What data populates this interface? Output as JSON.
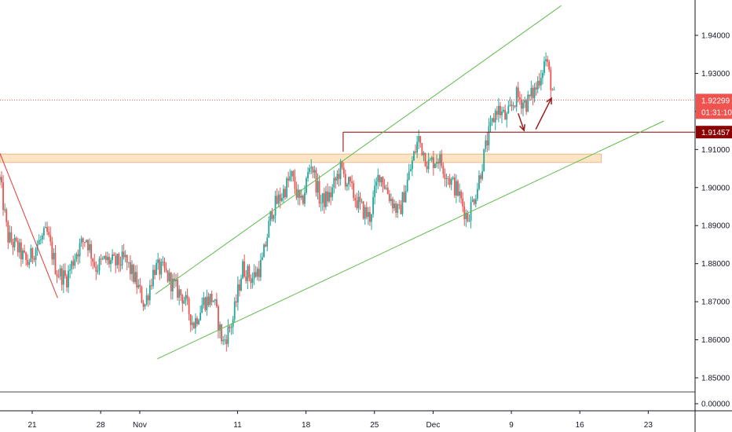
{
  "chart_data": {
    "type": "candlestick",
    "title": "",
    "xlabel": "",
    "ylabel": "",
    "ylim": [
      1.848,
      1.948
    ],
    "y_ticks": [
      "1.94000",
      "1.93000",
      "1.92000",
      "1.91000",
      "1.90000",
      "1.89000",
      "1.88000",
      "1.87000",
      "1.86000",
      "1.85000"
    ],
    "x_ticks": [
      {
        "label": "21",
        "day": 0
      },
      {
        "label": "28",
        "day": 7
      },
      {
        "label": "Nov",
        "day": 11
      },
      {
        "label": "11",
        "day": 21
      },
      {
        "label": "18",
        "day": 28
      },
      {
        "label": "25",
        "day": 35
      },
      {
        "label": "Dec",
        "day": 41
      },
      {
        "label": "9",
        "day": 49
      },
      {
        "label": "16",
        "day": 56
      },
      {
        "label": "23",
        "day": 63
      }
    ],
    "x_days_range": [
      -3.3,
      67.5
    ],
    "close_series_days": [
      -3.3,
      -2.5,
      -1.5,
      -0.5,
      0.5,
      1.5,
      2.5,
      3.5,
      4.5,
      5.5,
      6.5,
      7.5,
      8.5,
      9.5,
      10.5,
      11.5,
      12.5,
      13.5,
      14.5,
      15.5,
      16.5,
      17.5,
      18.5,
      19.5,
      20.5,
      21.5,
      22.5,
      23.5,
      24.5,
      25.5,
      26.5,
      27.5,
      28.5,
      29.5,
      30.5,
      31.5,
      32.5,
      33.5,
      34.5,
      35.5,
      36.5,
      37.5,
      38.5,
      39.5,
      40.5,
      41.5,
      42.5,
      43.5,
      44.5,
      45.5,
      46.5,
      47.5,
      48.5,
      49.5,
      50.5,
      51.5,
      52.5,
      53.5
    ],
    "close_series_values": [
      1.902,
      1.887,
      1.884,
      1.88,
      1.885,
      1.888,
      1.878,
      1.876,
      1.883,
      1.887,
      1.879,
      1.881,
      1.88,
      1.881,
      1.876,
      1.869,
      1.879,
      1.878,
      1.874,
      1.871,
      1.864,
      1.87,
      1.871,
      1.859,
      1.865,
      1.879,
      1.876,
      1.88,
      1.894,
      1.898,
      1.903,
      1.895,
      1.907,
      1.896,
      1.898,
      1.905,
      1.9,
      1.895,
      1.892,
      1.904,
      1.898,
      1.893,
      1.903,
      1.913,
      1.906,
      1.908,
      1.903,
      1.899,
      1.892,
      1.9,
      1.912,
      1.921,
      1.918,
      1.924,
      1.922,
      1.926,
      1.934,
      1.922
    ],
    "price_labels": {
      "current": "1.92299",
      "countdown": "01:31:10",
      "level": "1.91457",
      "zero": "0.00000"
    },
    "lines": {
      "current_price": 1.92299,
      "horizontal_level": 1.91457,
      "support_zone": [
        1.9066,
        1.9088
      ],
      "channel_upper": {
        "from": [
          12.6,
          1.872
        ],
        "to": [
          54.1,
          1.9478
        ]
      },
      "channel_lower": {
        "from": [
          12.8,
          1.855
        ],
        "to": [
          64.6,
          1.9175
        ]
      },
      "breakout_ray_start": [
        31.8,
        1.9145
      ],
      "downtrend": {
        "from": [
          -3.3,
          1.909
        ],
        "to": [
          2.6,
          1.871
        ]
      }
    },
    "projection_arrows": {
      "down": {
        "from": [
          49.7,
          1.9195
        ],
        "to": [
          50.3,
          1.915
        ]
      },
      "up": {
        "from": [
          51.5,
          1.9153
        ],
        "to": [
          53.1,
          1.9235
        ]
      }
    },
    "colors": {
      "up": "#26a69a",
      "down": "#ef5350",
      "channel": "#5fbb4d",
      "level": "#8b0000",
      "current": "#f05350",
      "zone_fill": "#fce4c4",
      "zone_border": "#e8b98c",
      "arrow": "#9b1b1b",
      "trend": "#e0393e"
    }
  }
}
